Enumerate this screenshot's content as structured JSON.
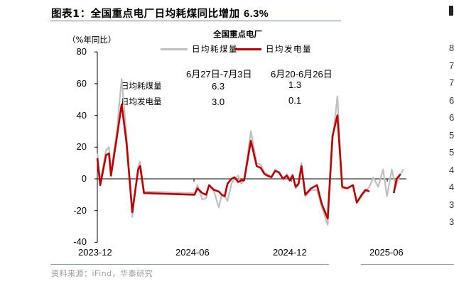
{
  "header": {
    "title_prefix": "图表1：",
    "title_main": "全国重点电厂日均耗煤同比增加 ",
    "title_pct": "6.3%"
  },
  "footer": {
    "source": "资料来源：iFind，华泰研究"
  },
  "colors": {
    "coal_series": "#bfbfbf",
    "power_series": "#c00000",
    "rule": "#5b7fa6",
    "axis": "#000000"
  },
  "chart_data": {
    "type": "line",
    "title": "全国重点电厂",
    "ylabel": "（%年同比）",
    "xlabel": "",
    "ylim": [
      -40,
      80
    ],
    "yticks": [
      80,
      60,
      40,
      20,
      0,
      -20,
      -40
    ],
    "xticks": [
      "2023-12",
      "2024-06",
      "2024-12",
      "2025-06"
    ],
    "grid": false,
    "legend_position": "top",
    "legend": [
      "日均耗煤量",
      "日均发电量"
    ],
    "x_index_note": "weekly observations, index 0 = early 2023-12",
    "series": [
      {
        "name": "日均耗煤量",
        "color": "#bfbfbf",
        "points": [
          [
            0,
            16
          ],
          [
            3,
            -2
          ],
          [
            9,
            18
          ],
          [
            12,
            20
          ],
          [
            14,
            4
          ],
          [
            20,
            30
          ],
          [
            25,
            63
          ],
          [
            30,
            28
          ],
          [
            36,
            -24
          ],
          [
            42,
            8
          ],
          [
            44,
            11
          ],
          [
            48,
            -8
          ],
          [
            100,
            -9
          ],
          [
            103,
            -4
          ],
          [
            108,
            -13
          ],
          [
            112,
            -12
          ],
          [
            115,
            -4
          ],
          [
            120,
            -8
          ],
          [
            125,
            -18
          ],
          [
            128,
            -10
          ],
          [
            131,
            -11
          ],
          [
            134,
            -14
          ],
          [
            138,
            -3
          ],
          [
            141,
            0
          ],
          [
            145,
            2
          ],
          [
            148,
            -3
          ],
          [
            151,
            -1
          ],
          [
            158,
            30
          ],
          [
            164,
            10
          ],
          [
            168,
            9
          ],
          [
            172,
            4
          ],
          [
            175,
            3
          ],
          [
            179,
            1
          ],
          [
            183,
            6
          ],
          [
            187,
            4
          ],
          [
            191,
            0
          ],
          [
            195,
            3
          ],
          [
            198,
            0
          ],
          [
            201,
            3
          ],
          [
            204,
            -6
          ],
          [
            207,
            -4
          ],
          [
            210,
            10
          ],
          [
            214,
            -11
          ],
          [
            220,
            -7
          ],
          [
            226,
            -7
          ],
          [
            231,
            -18
          ],
          [
            237,
            -29
          ],
          [
            242,
            24
          ],
          [
            247,
            52
          ],
          [
            252,
            -6
          ],
          [
            257,
            -6
          ],
          [
            263,
            -4
          ],
          [
            267,
            -15
          ],
          [
            272,
            -11
          ],
          [
            276,
            -8
          ],
          [
            280,
            -5
          ],
          [
            284,
            1
          ],
          [
            289,
            -5
          ],
          [
            294,
            6
          ],
          [
            298,
            -11
          ],
          [
            303,
            6
          ],
          [
            307,
            -5
          ],
          [
            311,
            2
          ],
          [
            315,
            6
          ]
        ]
      },
      {
        "name": "日均发电量",
        "color": "#c00000",
        "points": [
          [
            0,
            13
          ],
          [
            3,
            -4
          ],
          [
            9,
            15
          ],
          [
            12,
            16
          ],
          [
            14,
            2
          ],
          [
            20,
            26
          ],
          [
            25,
            47
          ],
          [
            30,
            23
          ],
          [
            36,
            -21
          ],
          [
            42,
            6
          ],
          [
            44,
            8
          ],
          [
            48,
            -9
          ],
          [
            100,
            -10
          ],
          [
            103,
            -6
          ],
          [
            108,
            -9
          ],
          [
            112,
            -10
          ],
          [
            115,
            -4
          ],
          [
            120,
            -7
          ],
          [
            125,
            -8
          ],
          [
            128,
            -10
          ],
          [
            131,
            -11
          ],
          [
            134,
            -3
          ],
          [
            138,
            0
          ],
          [
            141,
            1
          ],
          [
            145,
            -2
          ],
          [
            148,
            -1
          ],
          [
            151,
            -1
          ],
          [
            158,
            24
          ],
          [
            164,
            8
          ],
          [
            168,
            7
          ],
          [
            172,
            3
          ],
          [
            175,
            2
          ],
          [
            179,
            1
          ],
          [
            183,
            5
          ],
          [
            187,
            4
          ],
          [
            191,
            0
          ],
          [
            195,
            2
          ],
          [
            198,
            -1
          ],
          [
            201,
            2
          ],
          [
            204,
            -5
          ],
          [
            207,
            -3
          ],
          [
            210,
            8
          ],
          [
            214,
            -10
          ],
          [
            220,
            -6
          ],
          [
            226,
            -4
          ],
          [
            231,
            -16
          ],
          [
            237,
            -25
          ],
          [
            242,
            27
          ],
          [
            247,
            40
          ],
          [
            252,
            -5
          ],
          [
            257,
            -6
          ],
          [
            263,
            -4
          ],
          [
            267,
            -15
          ],
          [
            272,
            -10
          ],
          [
            276,
            -7
          ],
          [
            280,
            -8
          ],
          null,
          [
            305,
            -9
          ],
          [
            308,
            0
          ],
          [
            312,
            3
          ]
        ]
      }
    ],
    "annotation_table": {
      "columns": [
        "6月27日-7月3日",
        "6月20-6月26日"
      ],
      "rows": [
        {
          "label": "日均耗煤量",
          "values": [
            "6.3",
            "1.3"
          ]
        },
        {
          "label": "日均发电量",
          "values": [
            "3.0",
            "0.1"
          ]
        }
      ]
    }
  },
  "right_panel_partial": {
    "tick_fragments": [
      "8",
      "7",
      "7",
      "6",
      "6",
      "5",
      "5",
      "4",
      "4",
      "3",
      "3"
    ]
  }
}
